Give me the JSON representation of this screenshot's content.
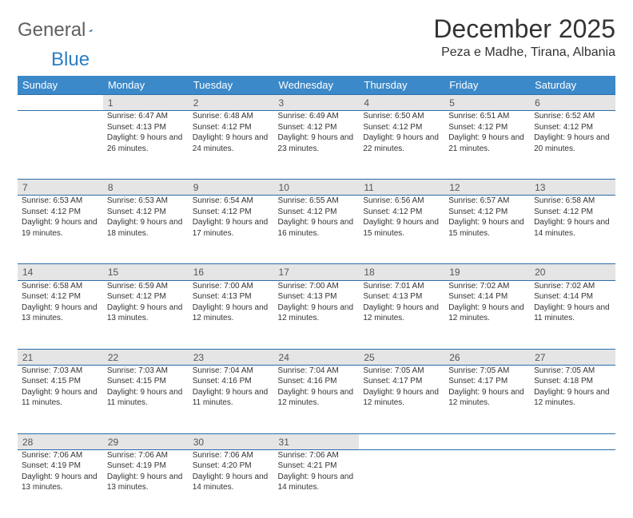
{
  "brand": {
    "part1": "General",
    "part2": "Blue"
  },
  "title": "December 2025",
  "location": "Peza e Madhe, Tirana, Albania",
  "colors": {
    "header_bg": "#3b89c9",
    "header_text": "#ffffff",
    "daynum_bg": "#e5e5e5",
    "rule": "#2b6da8",
    "body_text": "#333333",
    "logo_gray": "#5f5f5f",
    "logo_blue": "#2b7fc3"
  },
  "day_headers": [
    "Sunday",
    "Monday",
    "Tuesday",
    "Wednesday",
    "Thursday",
    "Friday",
    "Saturday"
  ],
  "weeks": [
    {
      "nums": [
        "",
        "1",
        "2",
        "3",
        "4",
        "5",
        "6"
      ],
      "cells": [
        null,
        {
          "sunrise": "6:47 AM",
          "sunset": "4:13 PM",
          "daylight": "9 hours and 26 minutes."
        },
        {
          "sunrise": "6:48 AM",
          "sunset": "4:12 PM",
          "daylight": "9 hours and 24 minutes."
        },
        {
          "sunrise": "6:49 AM",
          "sunset": "4:12 PM",
          "daylight": "9 hours and 23 minutes."
        },
        {
          "sunrise": "6:50 AM",
          "sunset": "4:12 PM",
          "daylight": "9 hours and 22 minutes."
        },
        {
          "sunrise": "6:51 AM",
          "sunset": "4:12 PM",
          "daylight": "9 hours and 21 minutes."
        },
        {
          "sunrise": "6:52 AM",
          "sunset": "4:12 PM",
          "daylight": "9 hours and 20 minutes."
        }
      ]
    },
    {
      "nums": [
        "7",
        "8",
        "9",
        "10",
        "11",
        "12",
        "13"
      ],
      "cells": [
        {
          "sunrise": "6:53 AM",
          "sunset": "4:12 PM",
          "daylight": "9 hours and 19 minutes."
        },
        {
          "sunrise": "6:53 AM",
          "sunset": "4:12 PM",
          "daylight": "9 hours and 18 minutes."
        },
        {
          "sunrise": "6:54 AM",
          "sunset": "4:12 PM",
          "daylight": "9 hours and 17 minutes."
        },
        {
          "sunrise": "6:55 AM",
          "sunset": "4:12 PM",
          "daylight": "9 hours and 16 minutes."
        },
        {
          "sunrise": "6:56 AM",
          "sunset": "4:12 PM",
          "daylight": "9 hours and 15 minutes."
        },
        {
          "sunrise": "6:57 AM",
          "sunset": "4:12 PM",
          "daylight": "9 hours and 15 minutes."
        },
        {
          "sunrise": "6:58 AM",
          "sunset": "4:12 PM",
          "daylight": "9 hours and 14 minutes."
        }
      ]
    },
    {
      "nums": [
        "14",
        "15",
        "16",
        "17",
        "18",
        "19",
        "20"
      ],
      "cells": [
        {
          "sunrise": "6:58 AM",
          "sunset": "4:12 PM",
          "daylight": "9 hours and 13 minutes."
        },
        {
          "sunrise": "6:59 AM",
          "sunset": "4:12 PM",
          "daylight": "9 hours and 13 minutes."
        },
        {
          "sunrise": "7:00 AM",
          "sunset": "4:13 PM",
          "daylight": "9 hours and 12 minutes."
        },
        {
          "sunrise": "7:00 AM",
          "sunset": "4:13 PM",
          "daylight": "9 hours and 12 minutes."
        },
        {
          "sunrise": "7:01 AM",
          "sunset": "4:13 PM",
          "daylight": "9 hours and 12 minutes."
        },
        {
          "sunrise": "7:02 AM",
          "sunset": "4:14 PM",
          "daylight": "9 hours and 12 minutes."
        },
        {
          "sunrise": "7:02 AM",
          "sunset": "4:14 PM",
          "daylight": "9 hours and 11 minutes."
        }
      ]
    },
    {
      "nums": [
        "21",
        "22",
        "23",
        "24",
        "25",
        "26",
        "27"
      ],
      "cells": [
        {
          "sunrise": "7:03 AM",
          "sunset": "4:15 PM",
          "daylight": "9 hours and 11 minutes."
        },
        {
          "sunrise": "7:03 AM",
          "sunset": "4:15 PM",
          "daylight": "9 hours and 11 minutes."
        },
        {
          "sunrise": "7:04 AM",
          "sunset": "4:16 PM",
          "daylight": "9 hours and 11 minutes."
        },
        {
          "sunrise": "7:04 AM",
          "sunset": "4:16 PM",
          "daylight": "9 hours and 12 minutes."
        },
        {
          "sunrise": "7:05 AM",
          "sunset": "4:17 PM",
          "daylight": "9 hours and 12 minutes."
        },
        {
          "sunrise": "7:05 AM",
          "sunset": "4:17 PM",
          "daylight": "9 hours and 12 minutes."
        },
        {
          "sunrise": "7:05 AM",
          "sunset": "4:18 PM",
          "daylight": "9 hours and 12 minutes."
        }
      ]
    },
    {
      "nums": [
        "28",
        "29",
        "30",
        "31",
        "",
        "",
        ""
      ],
      "cells": [
        {
          "sunrise": "7:06 AM",
          "sunset": "4:19 PM",
          "daylight": "9 hours and 13 minutes."
        },
        {
          "sunrise": "7:06 AM",
          "sunset": "4:19 PM",
          "daylight": "9 hours and 13 minutes."
        },
        {
          "sunrise": "7:06 AM",
          "sunset": "4:20 PM",
          "daylight": "9 hours and 14 minutes."
        },
        {
          "sunrise": "7:06 AM",
          "sunset": "4:21 PM",
          "daylight": "9 hours and 14 minutes."
        },
        null,
        null,
        null
      ]
    }
  ],
  "labels": {
    "sunrise": "Sunrise: ",
    "sunset": "Sunset: ",
    "daylight": "Daylight: "
  }
}
